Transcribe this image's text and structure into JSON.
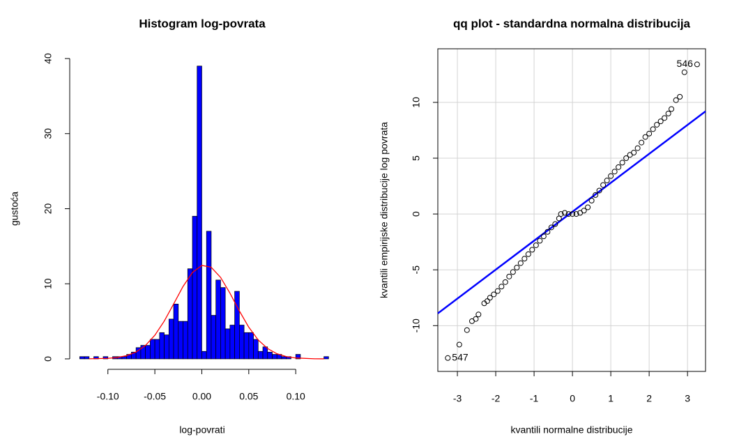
{
  "chart_data": [
    {
      "type": "histogram",
      "title": "Histogram log-povrata",
      "x_label": "log-povrati",
      "y_label": "gustoća",
      "bins": [
        -0.13,
        -0.125,
        -0.12,
        -0.115,
        -0.11,
        -0.105,
        -0.1,
        -0.095,
        -0.09,
        -0.085,
        -0.08,
        -0.075,
        -0.07,
        -0.065,
        -0.06,
        -0.055,
        -0.05,
        -0.045,
        -0.04,
        -0.035,
        -0.03,
        -0.025,
        -0.02,
        -0.015,
        -0.01,
        -0.005,
        0,
        0.005,
        0.01,
        0.015,
        0.02,
        0.025,
        0.03,
        0.035,
        0.04,
        0.045,
        0.05,
        0.055,
        0.06,
        0.065,
        0.07,
        0.075,
        0.08,
        0.085,
        0.09,
        0.095,
        0.1,
        0.105,
        0.11,
        0.115,
        0.12,
        0.125,
        0.13,
        0.135
      ],
      "values": [
        0.3,
        0.3,
        0,
        0.3,
        0,
        0.3,
        0,
        0.3,
        0.3,
        0.3,
        0.6,
        0.9,
        1.5,
        1.8,
        1.8,
        2.6,
        2.6,
        3.5,
        3.2,
        5.3,
        7.3,
        5.0,
        5.0,
        12.0,
        19.0,
        39.0,
        1.0,
        17.0,
        5.8,
        10.5,
        9.5,
        4.0,
        4.5,
        9.0,
        4.5,
        3.5,
        3.5,
        2.6,
        1.0,
        1.6,
        0.9,
        0.6,
        0.6,
        0.3,
        0.3,
        0,
        0.6,
        0,
        0,
        0,
        0,
        0,
        0.3
      ],
      "color": "#0000ff",
      "curve": {
        "color": "#ff0000",
        "x": [
          -0.12,
          -0.1,
          -0.09,
          -0.08,
          -0.07,
          -0.06,
          -0.05,
          -0.04,
          -0.03,
          -0.02,
          -0.01,
          0,
          0.01,
          0.02,
          0.03,
          0.04,
          0.05,
          0.06,
          0.07,
          0.08,
          0.09,
          0.1,
          0.12,
          0.13
        ],
        "y": [
          0.01,
          0.07,
          0.18,
          0.43,
          0.91,
          1.78,
          3.15,
          5.03,
          7.32,
          9.64,
          11.5,
          12.45,
          12.2,
          10.85,
          8.74,
          6.38,
          4.22,
          2.52,
          1.38,
          0.68,
          0.3,
          0.12,
          0.015,
          0.005
        ]
      },
      "xlim": [
        -0.1295,
        0.134
      ],
      "ylim": [
        0,
        40
      ],
      "xticks": [
        {
          "value": -0.1,
          "label": "-0.10"
        },
        {
          "value": -0.05,
          "label": "-0.05"
        },
        {
          "value": 0,
          "label": "0.00"
        },
        {
          "value": 0.05,
          "label": "0.05"
        },
        {
          "value": 0.1,
          "label": "0.10"
        }
      ],
      "yticks": [
        0,
        10,
        20,
        30,
        40
      ]
    },
    {
      "type": "scatter",
      "title": "qq plot - standardna normalna distribucija",
      "x_label": "kvantili normalne distribucije",
      "y_label": "kvantili empirijske distribucije log povrata",
      "x": [
        -3.25,
        -2.95,
        -2.75,
        -2.62,
        -2.52,
        -2.45,
        -2.3,
        -2.22,
        -2.15,
        -2.05,
        -1.95,
        -1.85,
        -1.75,
        -1.65,
        -1.55,
        -1.45,
        -1.35,
        -1.25,
        -1.15,
        -1.05,
        -0.95,
        -0.85,
        -0.75,
        -0.65,
        -0.55,
        -0.45,
        -0.35,
        -0.3,
        -0.2,
        -0.1,
        0,
        0.1,
        0.2,
        0.3,
        0.4,
        0.5,
        0.6,
        0.7,
        0.8,
        0.9,
        1.0,
        1.1,
        1.2,
        1.3,
        1.4,
        1.5,
        1.6,
        1.7,
        1.8,
        1.9,
        2.0,
        2.1,
        2.2,
        2.3,
        2.4,
        2.5,
        2.58,
        2.7,
        2.8,
        2.92,
        3.25
      ],
      "y": [
        -12.9,
        -11.7,
        -10.4,
        -9.6,
        -9.4,
        -9.0,
        -8.0,
        -7.8,
        -7.5,
        -7.2,
        -6.9,
        -6.5,
        -6.1,
        -5.6,
        -5.2,
        -4.8,
        -4.4,
        -4.0,
        -3.6,
        -3.2,
        -2.8,
        -2.4,
        -2.0,
        -1.6,
        -1.2,
        -0.9,
        -0.4,
        0.0,
        0.1,
        0.0,
        0.0,
        0.0,
        0.1,
        0.3,
        0.6,
        1.2,
        1.7,
        2.1,
        2.6,
        3.0,
        3.4,
        3.8,
        4.2,
        4.6,
        5.0,
        5.3,
        5.5,
        5.9,
        6.4,
        6.9,
        7.2,
        7.6,
        8.0,
        8.3,
        8.6,
        9.0,
        9.4,
        10.2,
        10.5,
        12.7,
        13.4
      ],
      "color": "#000000",
      "line": {
        "color": "#0000ff",
        "x": [
          -3.51,
          3.47
        ],
        "y": [
          -8.9,
          9.2
        ]
      },
      "annotations": [
        {
          "text": "546",
          "x": 3.25,
          "y": 13.4
        },
        {
          "text": "547",
          "x": -3.25,
          "y": -12.9
        }
      ],
      "xlim": [
        -3.51,
        3.47
      ],
      "ylim": [
        -14.1,
        14.8
      ],
      "xticks": [
        -3,
        -2,
        -1,
        0,
        1,
        2,
        3
      ],
      "yticks": [
        -10,
        -5,
        0,
        5,
        10
      ],
      "grid": true
    }
  ]
}
